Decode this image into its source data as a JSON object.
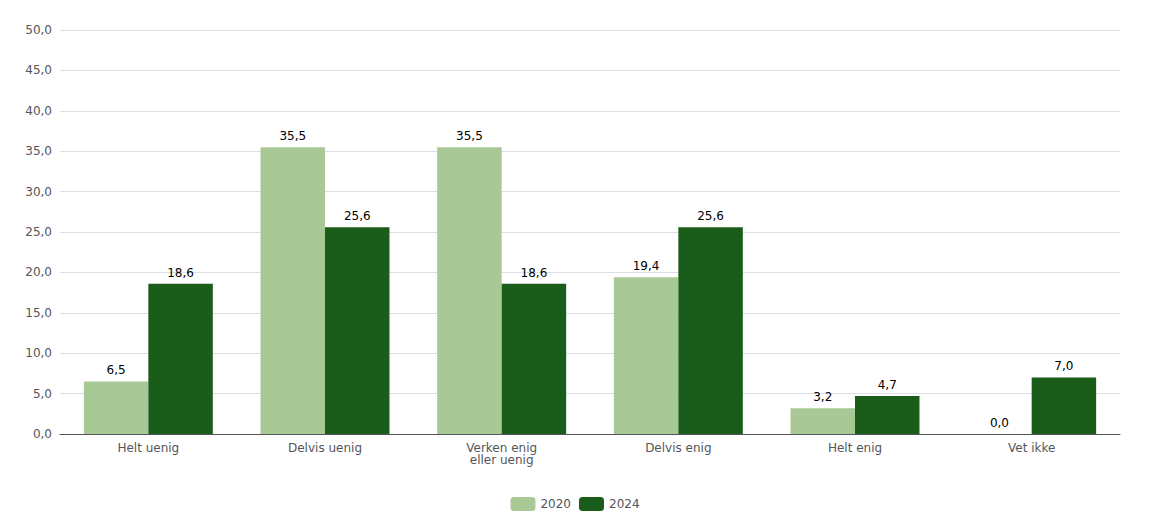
{
  "chart_data": {
    "type": "bar",
    "categories": [
      "Helt uenig",
      "Delvis uenig",
      "Verken enig\neller uenig",
      "Delvis enig",
      "Helt enig",
      "Vet ikke"
    ],
    "series": [
      {
        "name": "2020",
        "color": "#a8c896",
        "values": [
          6.5,
          35.5,
          35.5,
          19.4,
          3.2,
          0.0
        ],
        "value_labels": [
          "6,5",
          "35,5",
          "35,5",
          "19,4",
          "3,2",
          "0,0"
        ]
      },
      {
        "name": "2024",
        "color": "#1a5c1a",
        "values": [
          18.6,
          25.6,
          18.6,
          25.6,
          4.7,
          7.0
        ],
        "value_labels": [
          "18,6",
          "25,6",
          "18,6",
          "25,6",
          "4,7",
          "7,0"
        ]
      }
    ],
    "ylim": [
      0,
      50
    ],
    "yticks": [
      {
        "value": 0.0,
        "label": "0,0"
      },
      {
        "value": 5.0,
        "label": "5,0"
      },
      {
        "value": 10.0,
        "label": "10,0"
      },
      {
        "value": 15.0,
        "label": "15,0"
      },
      {
        "value": 20.0,
        "label": "20,0"
      },
      {
        "value": 25.0,
        "label": "25,0"
      },
      {
        "value": 30.0,
        "label": "30,0"
      },
      {
        "value": 35.0,
        "label": "35,0"
      },
      {
        "value": 40.0,
        "label": "40,0"
      },
      {
        "value": 45.0,
        "label": "45,0"
      },
      {
        "value": 50.0,
        "label": "50,0"
      }
    ],
    "grid": true,
    "legend": "bottom",
    "data_labels": true
  }
}
